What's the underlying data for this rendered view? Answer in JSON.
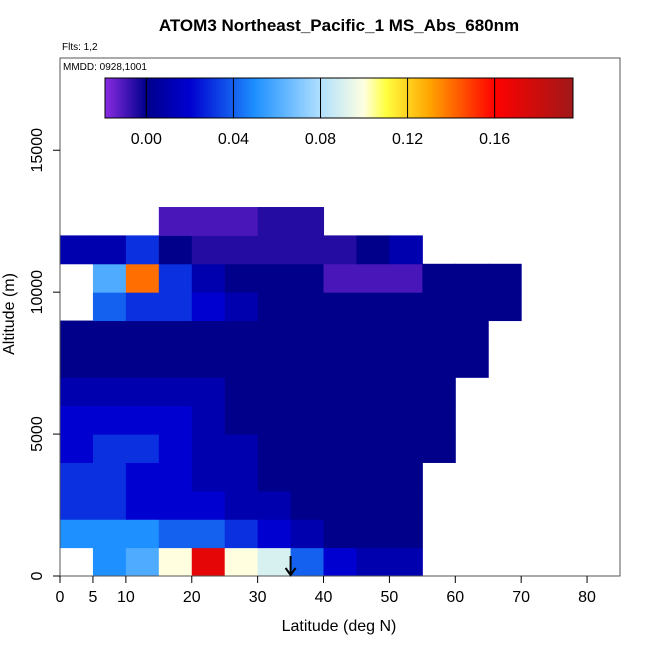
{
  "chart_data": {
    "type": "heatmap",
    "title": "ATOM3 Northeast_Pacific_1 MS_Abs_680nm",
    "subtitle": "Flts: 1,2",
    "annotation": "MMDD: 0928,1001",
    "xlabel": "Latitude (deg N)",
    "ylabel": "Altitude (m)",
    "xlim": [
      0,
      85
    ],
    "ylim": [
      0,
      18250
    ],
    "xticks": [
      0,
      5,
      10,
      20,
      30,
      40,
      50,
      60,
      70,
      80
    ],
    "yticks": [
      0,
      5000,
      10000,
      15000
    ],
    "clim": [
      -0.019,
      0.196
    ],
    "cticks": [
      {
        "value": 0,
        "label": "0.00"
      },
      {
        "value": 0.04,
        "label": "0.04"
      },
      {
        "value": 0.08,
        "label": "0.08"
      },
      {
        "value": 0.12,
        "label": "0.12"
      },
      {
        "value": 0.16,
        "label": "0.16"
      }
    ],
    "colorscale": [
      [
        -0.019,
        "#8a2be2"
      ],
      [
        0,
        "#00008b"
      ],
      [
        0.02,
        "#0000d0"
      ],
      [
        0.05,
        "#1e90ff"
      ],
      [
        0.08,
        "#b0e0ff"
      ],
      [
        0.1,
        "#ffffe0"
      ],
      [
        0.11,
        "#ffff40"
      ],
      [
        0.13,
        "#ffa500"
      ],
      [
        0.16,
        "#ff0000"
      ],
      [
        0.196,
        "#a01818"
      ]
    ],
    "marker_x": 35,
    "x_edges": [
      0,
      5,
      10,
      15,
      20,
      25,
      30,
      35,
      40,
      45,
      50,
      55,
      60,
      65,
      70,
      75
    ],
    "y_edges": [
      0,
      1000,
      2000,
      3000,
      4000,
      5000,
      6000,
      7000,
      8000,
      9000,
      10000,
      11000,
      12000,
      13000
    ],
    "values": [
      [
        null,
        0.05,
        0.06,
        0.1,
        0.17,
        0.1,
        0.09,
        0.04,
        0.02,
        0.01,
        0.01,
        null,
        null,
        null,
        null
      ],
      [
        0.05,
        0.05,
        0.05,
        0.04,
        0.04,
        0.03,
        0.02,
        0.01,
        0,
        0,
        0,
        null,
        null,
        null,
        null
      ],
      [
        0.03,
        0.03,
        0.02,
        0.02,
        0.02,
        0.01,
        0.01,
        0,
        0,
        0,
        0,
        null,
        null,
        null,
        null
      ],
      [
        0.03,
        0.03,
        0.02,
        0.02,
        0.01,
        0.01,
        0,
        0,
        0,
        0,
        0,
        null,
        null,
        null,
        null
      ],
      [
        0.02,
        0.03,
        0.03,
        0.02,
        0.01,
        0.01,
        0,
        0,
        0,
        0,
        0,
        0,
        null,
        null,
        null
      ],
      [
        0.02,
        0.02,
        0.02,
        0.02,
        0.01,
        0,
        0,
        0,
        0,
        0,
        0,
        0,
        null,
        null,
        null
      ],
      [
        0.01,
        0.01,
        0.01,
        0.01,
        0.01,
        0,
        0,
        0,
        0,
        0,
        0,
        0,
        null,
        null,
        null
      ],
      [
        0,
        0,
        0,
        0,
        0,
        0,
        0,
        0,
        0,
        0,
        0,
        0,
        0,
        null,
        null
      ],
      [
        0,
        0,
        0,
        0,
        0,
        0,
        0,
        0,
        0,
        0,
        0,
        0,
        0,
        null,
        null
      ],
      [
        null,
        0.04,
        0.03,
        0.03,
        0.02,
        0.01,
        0,
        0,
        0,
        0,
        0,
        0,
        0,
        0,
        null
      ],
      [
        null,
        0.06,
        0.14,
        0.03,
        0.01,
        0,
        0,
        0,
        -0.01,
        -0.01,
        -0.01,
        0,
        0,
        0,
        null
      ],
      [
        0.01,
        0.01,
        0.03,
        0,
        -0.005,
        -0.005,
        -0.005,
        -0.005,
        -0.005,
        0,
        0.01,
        null,
        null,
        null,
        null
      ],
      [
        null,
        null,
        null,
        -0.01,
        -0.01,
        -0.01,
        -0.005,
        -0.005,
        null,
        null,
        null,
        null,
        null,
        null,
        null
      ]
    ]
  }
}
